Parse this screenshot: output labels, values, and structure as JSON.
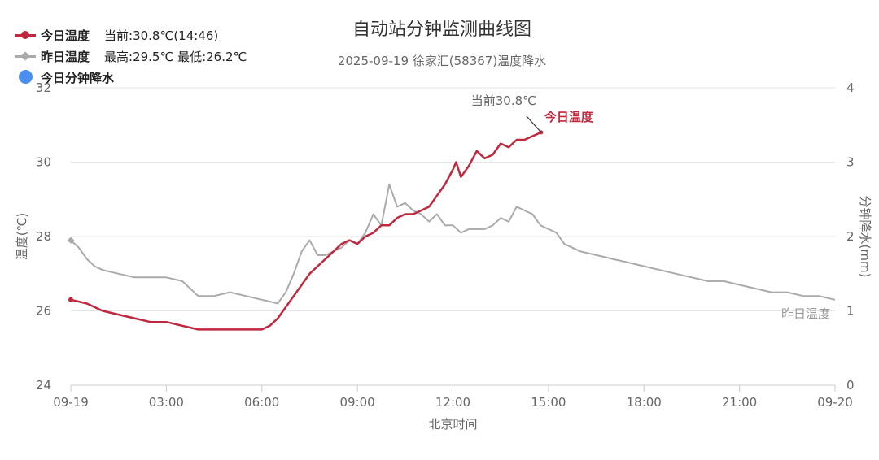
{
  "chart_data": {
    "type": "line",
    "title": "自动站分钟监测曲线图",
    "subtitle": "2025-09-19 徐家汇(58367)温度降水",
    "xlabel": "北京时间",
    "ylabel": "温度(℃)",
    "y2label": "分钟降水(mm)",
    "x_ticks": [
      "09-19",
      "03:00",
      "06:00",
      "09:00",
      "12:00",
      "15:00",
      "18:00",
      "21:00",
      "09-20"
    ],
    "x_range_hours": [
      0,
      24
    ],
    "ylim": [
      24,
      32
    ],
    "y_ticks": [
      24,
      26,
      28,
      30,
      32
    ],
    "y2lim": [
      0,
      4
    ],
    "y2_ticks": [
      0,
      1,
      2,
      3,
      4
    ],
    "grid": true,
    "legend_position": "top-left",
    "legend": [
      {
        "name": "今日温度",
        "info": "当前:30.8℃(14:46)"
      },
      {
        "name": "昨日温度",
        "info": "最高:29.5℃ 最低:26.2℃"
      },
      {
        "name": "今日分钟降水",
        "info": ""
      }
    ],
    "annotations": {
      "current_label": "当前30.8℃",
      "today_series_label": "今日温度",
      "yesterday_series_label": "昨日温度"
    },
    "colors": {
      "today": "#c0283e",
      "yesterday": "#aaaaaa",
      "precip": "#4a8ff0",
      "grid": "#e6e6e6",
      "axis": "#cccccc"
    },
    "series": [
      {
        "name": "今日温度",
        "x": [
          0,
          0.5,
          1,
          1.5,
          2,
          2.5,
          3,
          3.5,
          4,
          4.5,
          5,
          5.5,
          6,
          6.25,
          6.5,
          6.75,
          7,
          7.25,
          7.5,
          7.75,
          8,
          8.25,
          8.5,
          8.75,
          9,
          9.25,
          9.5,
          9.75,
          10,
          10.25,
          10.5,
          10.75,
          11,
          11.25,
          11.5,
          11.75,
          12,
          12.1,
          12.25,
          12.5,
          12.75,
          13,
          13.25,
          13.5,
          13.75,
          14,
          14.25,
          14.5,
          14.77
        ],
        "y": [
          26.3,
          26.2,
          26.0,
          25.9,
          25.8,
          25.7,
          25.7,
          25.6,
          25.5,
          25.5,
          25.5,
          25.5,
          25.5,
          25.6,
          25.8,
          26.1,
          26.4,
          26.7,
          27.0,
          27.2,
          27.4,
          27.6,
          27.8,
          27.9,
          27.8,
          28.0,
          28.1,
          28.3,
          28.3,
          28.5,
          28.6,
          28.6,
          28.7,
          28.8,
          29.1,
          29.4,
          29.8,
          30.0,
          29.6,
          29.9,
          30.3,
          30.1,
          30.2,
          30.5,
          30.4,
          30.6,
          30.6,
          30.7,
          30.8
        ]
      },
      {
        "name": "昨日温度",
        "x": [
          0,
          0.25,
          0.5,
          0.75,
          1,
          1.5,
          2,
          2.5,
          3,
          3.5,
          4,
          4.5,
          5,
          5.5,
          6,
          6.5,
          6.75,
          7,
          7.25,
          7.5,
          7.75,
          8,
          8.25,
          8.5,
          8.75,
          9,
          9.25,
          9.5,
          9.75,
          10,
          10.25,
          10.5,
          10.75,
          11,
          11.25,
          11.5,
          11.75,
          12,
          12.25,
          12.5,
          12.75,
          13,
          13.25,
          13.5,
          13.75,
          14,
          14.25,
          14.5,
          14.75,
          15,
          15.25,
          15.5,
          15.75,
          16,
          16.5,
          17,
          17.5,
          18,
          18.5,
          19,
          19.5,
          20,
          20.5,
          21,
          21.5,
          22,
          22.5,
          23,
          23.5,
          24
        ],
        "y": [
          27.9,
          27.7,
          27.4,
          27.2,
          27.1,
          27.0,
          26.9,
          26.9,
          26.9,
          26.8,
          26.4,
          26.4,
          26.5,
          26.4,
          26.3,
          26.2,
          26.5,
          27.0,
          27.6,
          27.9,
          27.5,
          27.5,
          27.6,
          27.7,
          27.9,
          27.8,
          28.1,
          28.6,
          28.3,
          29.4,
          28.8,
          28.9,
          28.7,
          28.6,
          28.4,
          28.6,
          28.3,
          28.3,
          28.1,
          28.2,
          28.2,
          28.2,
          28.3,
          28.5,
          28.4,
          28.8,
          28.7,
          28.6,
          28.3,
          28.2,
          28.1,
          27.8,
          27.7,
          27.6,
          27.5,
          27.4,
          27.3,
          27.2,
          27.1,
          27.0,
          26.9,
          26.8,
          26.8,
          26.7,
          26.6,
          26.5,
          26.5,
          26.4,
          26.4,
          26.3
        ]
      }
    ]
  }
}
